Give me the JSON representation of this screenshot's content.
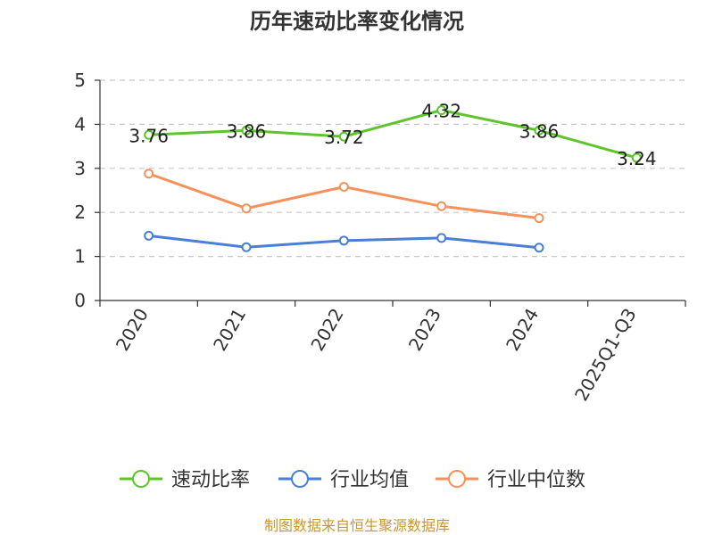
{
  "chart_data": {
    "type": "line",
    "title": "历年速动比率变化情况",
    "categories": [
      "2020",
      "2021",
      "2022",
      "2023",
      "2024",
      "2025Q1-Q3"
    ],
    "ylim": [
      0,
      5
    ],
    "yticks": [
      0,
      1,
      2,
      3,
      4,
      5
    ],
    "grid": true,
    "legend_position": "bottom",
    "series": [
      {
        "name": "速动比率",
        "color": "#5cc52a",
        "values": [
          3.76,
          3.86,
          3.72,
          4.32,
          3.86,
          3.24
        ],
        "labels": [
          "3.76",
          "3.86",
          "3.72",
          "4.32",
          "3.86",
          "3.24"
        ]
      },
      {
        "name": "行业均值",
        "color": "#4a7fd6",
        "values": [
          1.47,
          1.21,
          1.36,
          1.42,
          1.2,
          null
        ]
      },
      {
        "name": "行业中位数",
        "color": "#f5915a",
        "values": [
          2.88,
          2.09,
          2.58,
          2.14,
          1.87,
          null
        ]
      }
    ]
  },
  "source": "制图数据来自恒生聚源数据库"
}
